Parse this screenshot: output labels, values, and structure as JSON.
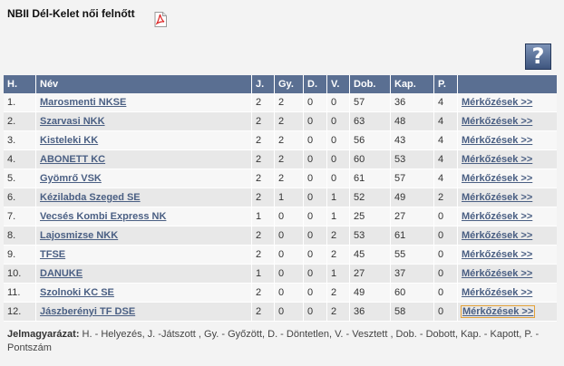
{
  "header": {
    "title": "NBII Dél-Kelet női felnőtt",
    "pdf_icon": "pdf-icon",
    "help_icon": "help-icon",
    "help_glyph": "?"
  },
  "table": {
    "columns": [
      "H.",
      "Név",
      "J.",
      "Gy.",
      "D.",
      "V.",
      "Dob.",
      "Kap.",
      "P.",
      ""
    ],
    "link_label": "Mérkőzések >>",
    "rows": [
      {
        "pos": "1.",
        "team": "Marosmenti NKSE",
        "j": "2",
        "gy": "2",
        "d": "0",
        "v": "0",
        "dob": "57",
        "kap": "36",
        "p": "4"
      },
      {
        "pos": "2.",
        "team": "Szarvasi NKK",
        "j": "2",
        "gy": "2",
        "d": "0",
        "v": "0",
        "dob": "63",
        "kap": "48",
        "p": "4"
      },
      {
        "pos": "3.",
        "team": "Kisteleki KK",
        "j": "2",
        "gy": "2",
        "d": "0",
        "v": "0",
        "dob": "56",
        "kap": "43",
        "p": "4"
      },
      {
        "pos": "4.",
        "team": "ABONETT KC",
        "j": "2",
        "gy": "2",
        "d": "0",
        "v": "0",
        "dob": "60",
        "kap": "53",
        "p": "4"
      },
      {
        "pos": "5.",
        "team": "Gyömrő VSK",
        "j": "2",
        "gy": "2",
        "d": "0",
        "v": "0",
        "dob": "61",
        "kap": "57",
        "p": "4"
      },
      {
        "pos": "6.",
        "team": "Kézilabda Szeged SE",
        "j": "2",
        "gy": "1",
        "d": "0",
        "v": "1",
        "dob": "52",
        "kap": "49",
        "p": "2"
      },
      {
        "pos": "7.",
        "team": "Vecsés Kombi Express NK",
        "j": "1",
        "gy": "0",
        "d": "0",
        "v": "1",
        "dob": "25",
        "kap": "27",
        "p": "0"
      },
      {
        "pos": "8.",
        "team": "Lajosmizse NKK",
        "j": "2",
        "gy": "0",
        "d": "0",
        "v": "2",
        "dob": "53",
        "kap": "61",
        "p": "0"
      },
      {
        "pos": "9.",
        "team": "TFSE",
        "j": "2",
        "gy": "0",
        "d": "0",
        "v": "2",
        "dob": "45",
        "kap": "55",
        "p": "0"
      },
      {
        "pos": "10.",
        "team": "DANUKE",
        "j": "1",
        "gy": "0",
        "d": "0",
        "v": "1",
        "dob": "27",
        "kap": "37",
        "p": "0"
      },
      {
        "pos": "11.",
        "team": "Szolnoki KC SE",
        "j": "2",
        "gy": "0",
        "d": "0",
        "v": "2",
        "dob": "49",
        "kap": "60",
        "p": "0"
      },
      {
        "pos": "12.",
        "team": "Jászberényi TF DSE",
        "j": "2",
        "gy": "0",
        "d": "0",
        "v": "2",
        "dob": "36",
        "kap": "58",
        "p": "0"
      }
    ]
  },
  "legend": {
    "label": "Jelmagyarázat:",
    "text": " H. - Helyezés, J. -Játszott , Gy. - Győzött, D. - Döntetlen, V. - Vesztett , Dob. - Dobott, Kap. - Kapott, P. - Pontszám"
  }
}
